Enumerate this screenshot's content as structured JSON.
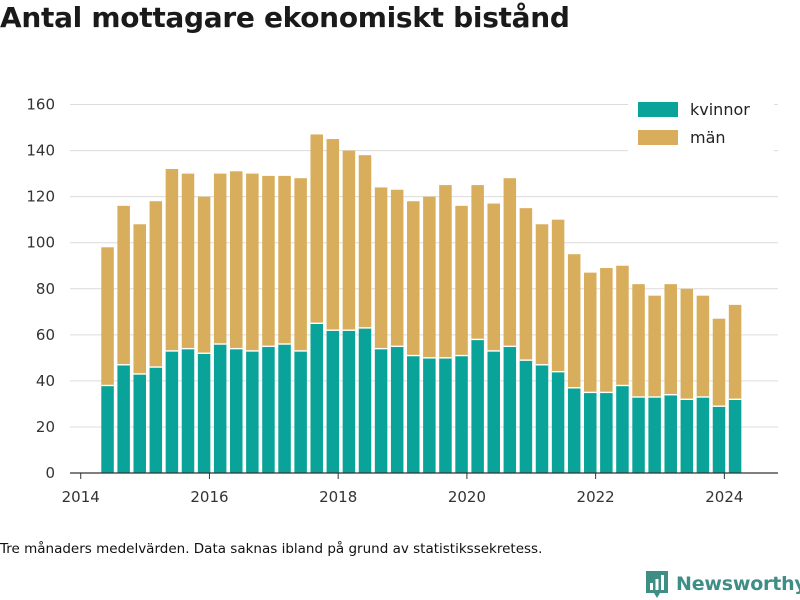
{
  "header": {
    "title": "Antal mottagare ekonomiskt bistånd"
  },
  "footer": {
    "note": "Tre månaders medelvärden. Data saknas ibland på grund av statistikssekretess.",
    "brand": "Newsworthy"
  },
  "colors": {
    "kvinnor": "#0aa39a",
    "man": "#d8ad5c",
    "grid": "#dcdcdc",
    "axis": "#333333",
    "brand": "#3e8e86"
  },
  "chart_data": {
    "type": "bar",
    "stacked": true,
    "x": [
      "2014-06",
      "2014-09",
      "2014-12",
      "2015-03",
      "2015-06",
      "2015-09",
      "2015-12",
      "2016-03",
      "2016-06",
      "2016-09",
      "2016-12",
      "2017-03",
      "2017-06",
      "2017-09",
      "2017-12",
      "2018-03",
      "2018-06",
      "2018-09",
      "2018-12",
      "2019-03",
      "2019-06",
      "2019-09",
      "2019-12",
      "2020-03",
      "2020-06",
      "2020-09",
      "2020-12",
      "2021-03",
      "2021-06",
      "2021-09",
      "2021-12",
      "2022-03",
      "2022-06",
      "2022-09",
      "2022-12",
      "2023-03",
      "2023-06",
      "2023-09",
      "2023-12",
      "2024-03"
    ],
    "series": [
      {
        "name": "kvinnor",
        "values": [
          38,
          47,
          43,
          46,
          53,
          54,
          52,
          56,
          54,
          53,
          55,
          56,
          53,
          65,
          62,
          62,
          63,
          54,
          55,
          51,
          50,
          50,
          51,
          58,
          53,
          55,
          49,
          47,
          44,
          37,
          35,
          35,
          38,
          33,
          33,
          34,
          32,
          33,
          29,
          32
        ]
      },
      {
        "name": "män",
        "values": [
          60,
          69,
          65,
          72,
          79,
          76,
          68,
          74,
          77,
          77,
          74,
          73,
          75,
          82,
          83,
          78,
          75,
          70,
          68,
          67,
          70,
          75,
          65,
          67,
          64,
          73,
          66,
          61,
          66,
          58,
          52,
          54,
          52,
          49,
          44,
          48,
          48,
          44,
          38,
          41
        ]
      }
    ],
    "xlim": [
      "2013-11",
      "2024-11"
    ],
    "ylim": [
      0,
      165
    ],
    "yticks": [
      0,
      20,
      40,
      60,
      80,
      100,
      120,
      140,
      160
    ],
    "xticks": [
      "2014",
      "2016",
      "2018",
      "2020",
      "2022",
      "2024"
    ],
    "grid": true,
    "legend": "top-right"
  }
}
